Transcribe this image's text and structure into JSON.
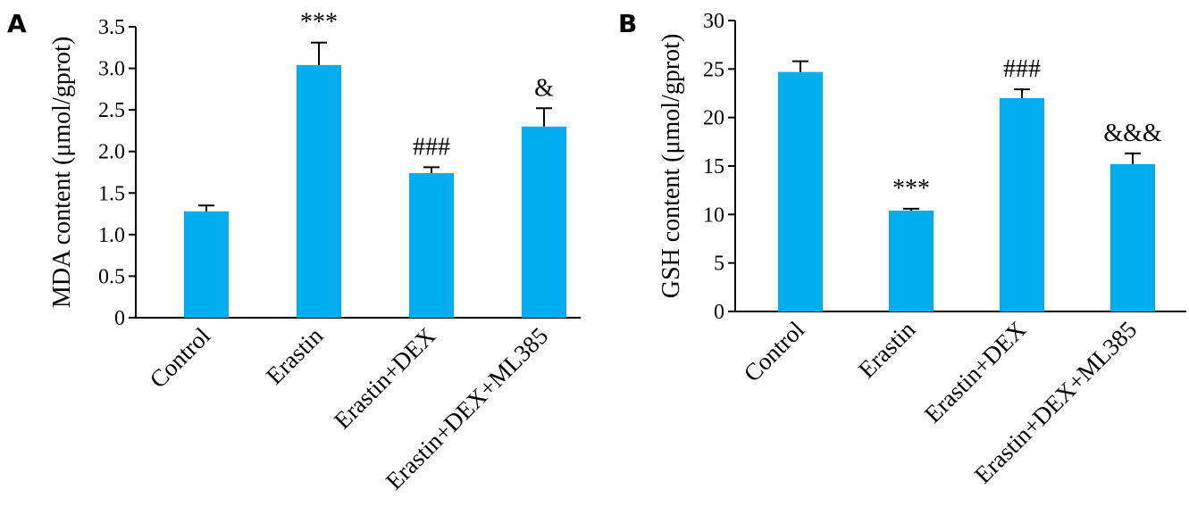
{
  "chart_data": [
    {
      "panel": "A",
      "type": "bar",
      "categories": [
        "Control",
        "Erastin",
        "Erastin+DEX",
        "Erastin+DEX+ML385"
      ],
      "values": [
        1.28,
        3.04,
        1.74,
        2.3
      ],
      "errors": [
        0.07,
        0.27,
        0.07,
        0.22
      ],
      "annotations": [
        "",
        "***",
        "###",
        "&"
      ],
      "ylabel": "MDA content (μmol/gprot)",
      "xlabel": "",
      "ylim": [
        0,
        3.5
      ],
      "yticks": [
        0,
        0.5,
        1.0,
        1.5,
        2.0,
        2.5,
        3.0,
        3.5
      ],
      "ytick_labels": [
        "0",
        "0.5",
        "1.0",
        "1.5",
        "2.0",
        "2.5",
        "3.0",
        "3.5"
      ],
      "bar_color": "#00aeef",
      "grid": false,
      "legend": "none"
    },
    {
      "panel": "B",
      "type": "bar",
      "categories": [
        "Control",
        "Erastin",
        "Erastin+DEX",
        "Erastin+DEX+ML385"
      ],
      "values": [
        24.7,
        10.4,
        22.0,
        15.2
      ],
      "errors": [
        1.1,
        0.2,
        0.9,
        1.1
      ],
      "annotations": [
        "",
        "***",
        "###",
        "&&&"
      ],
      "ylabel": "GSH content (μmol/gprot)",
      "xlabel": "",
      "ylim": [
        0,
        30
      ],
      "yticks": [
        0,
        5,
        10,
        15,
        20,
        25,
        30
      ],
      "ytick_labels": [
        "0",
        "5",
        "10",
        "15",
        "20",
        "25",
        "30"
      ],
      "bar_color": "#00aeef",
      "grid": false,
      "legend": "none"
    }
  ]
}
